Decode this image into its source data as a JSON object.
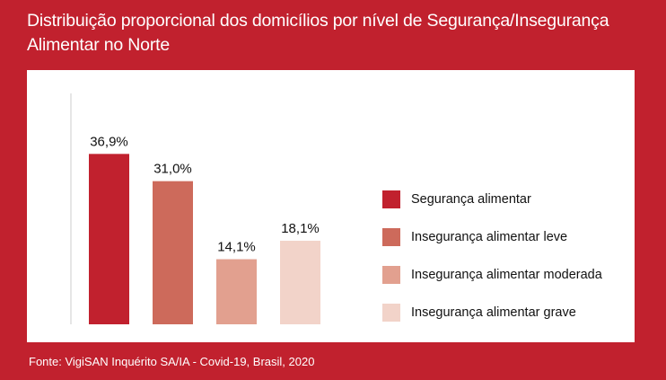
{
  "title": "Distribuição proporcional dos domicílios por nível de Segurança/Insegurança Alimentar no Norte",
  "source": "Fonte: VigiSAN Inquérito SA/IA - Covid-19, Brasil, 2020",
  "colors": {
    "background": "#c1212e",
    "panel": "#ffffff"
  },
  "chart_data": {
    "type": "bar",
    "categories": [
      "Segurança alimentar",
      "Insegurança alimentar leve",
      "Insegurança alimentar moderada",
      "Insegurança alimentar grave"
    ],
    "values": [
      36.9,
      31.0,
      14.1,
      18.1
    ],
    "value_labels": [
      "36,9%",
      "31,0%",
      "14,1%",
      "18,1%"
    ],
    "colors": [
      "#c1212e",
      "#cd6a5b",
      "#e2a08f",
      "#f2d3c9"
    ],
    "ylim": [
      0,
      50
    ],
    "grid": false,
    "legend_position": "right"
  }
}
